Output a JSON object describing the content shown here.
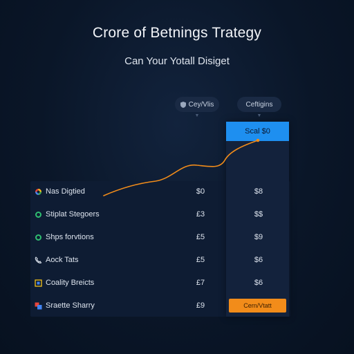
{
  "header": {
    "title": "Crore of Betnings Trategy",
    "subtitle": "Can Your Yotall Disiget"
  },
  "columns": {
    "left_pill": "Cey/Vlis",
    "right_pill": "Ceftigins",
    "plan_header": "Scal $0"
  },
  "rows": [
    {
      "label": "Nas Digtied",
      "v1": "$0",
      "v2": "$8",
      "icon": "multicolor-dot-icon"
    },
    {
      "label": "Stiplat Stegoers",
      "v1": "£3",
      "v2": "$$",
      "icon": "green-ring-icon"
    },
    {
      "label": "Shps forvtions",
      "v1": "£5",
      "v2": "$9",
      "icon": "green-ring-icon"
    },
    {
      "label": "Aock Tats",
      "v1": "£5",
      "v2": "$6",
      "icon": "phone-icon"
    },
    {
      "label": "Coality Breicts",
      "v1": "£7",
      "v2": "$6",
      "icon": "square-icon"
    },
    {
      "label": "Sraette Sharry",
      "v1": "£9",
      "v2": "",
      "icon": "stacked-squares-icon"
    }
  ],
  "cta": {
    "label": "Cern/Vtatt"
  },
  "colors": {
    "accent_blue": "#1e8ff0",
    "accent_orange": "#f28c1a",
    "status_green": "#2fbf71"
  }
}
